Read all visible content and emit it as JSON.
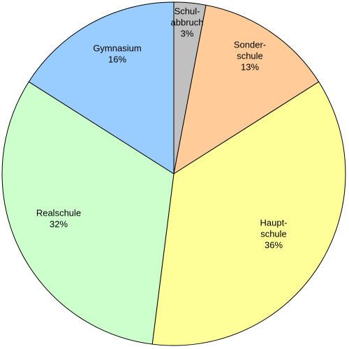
{
  "chart_data": {
    "type": "pie",
    "start_angle_deg": 0,
    "direction": "clockwise",
    "slices": [
      {
        "lines": [
          "Schul-",
          "abbruch",
          "3%"
        ],
        "value": 3,
        "color": "#c0c0c0"
      },
      {
        "lines": [
          "Sonder-",
          "schule",
          "13%"
        ],
        "value": 13,
        "color": "#ffcc99"
      },
      {
        "lines": [
          "Haupt-",
          "schule",
          "36%"
        ],
        "value": 36,
        "color": "#ffff99"
      },
      {
        "lines": [
          "Realschule",
          "32%"
        ],
        "value": 32,
        "color": "#ccffcc"
      },
      {
        "lines": [
          "Gymnasium",
          "16%"
        ],
        "value": 16,
        "color": "#99ccff"
      }
    ]
  }
}
